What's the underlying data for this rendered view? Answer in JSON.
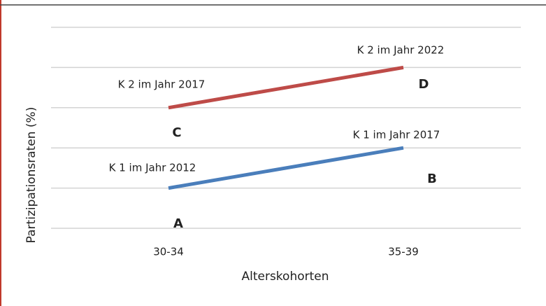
{
  "chart_data": {
    "type": "line",
    "categories": [
      "30-34",
      "35-39"
    ],
    "series": [
      {
        "name": "K 1",
        "color": "#4a7ebb",
        "values": [
          1,
          2
        ]
      },
      {
        "name": "K 2",
        "color": "#be4b48",
        "values": [
          3,
          4
        ]
      }
    ],
    "ylim": [
      0,
      5
    ],
    "yticks": [
      0,
      1,
      2,
      3,
      4,
      5
    ],
    "grid": true,
    "x_label": "Alterskohorten",
    "y_label": "Partizipationsraten (%)",
    "annotations": [
      "K 2 im Jahr 2017",
      "K 2 im Jahr 2022",
      "D",
      "C",
      "K 1 im Jahr 2012",
      "K 1  im Jahr 2017",
      "B",
      "A"
    ]
  }
}
